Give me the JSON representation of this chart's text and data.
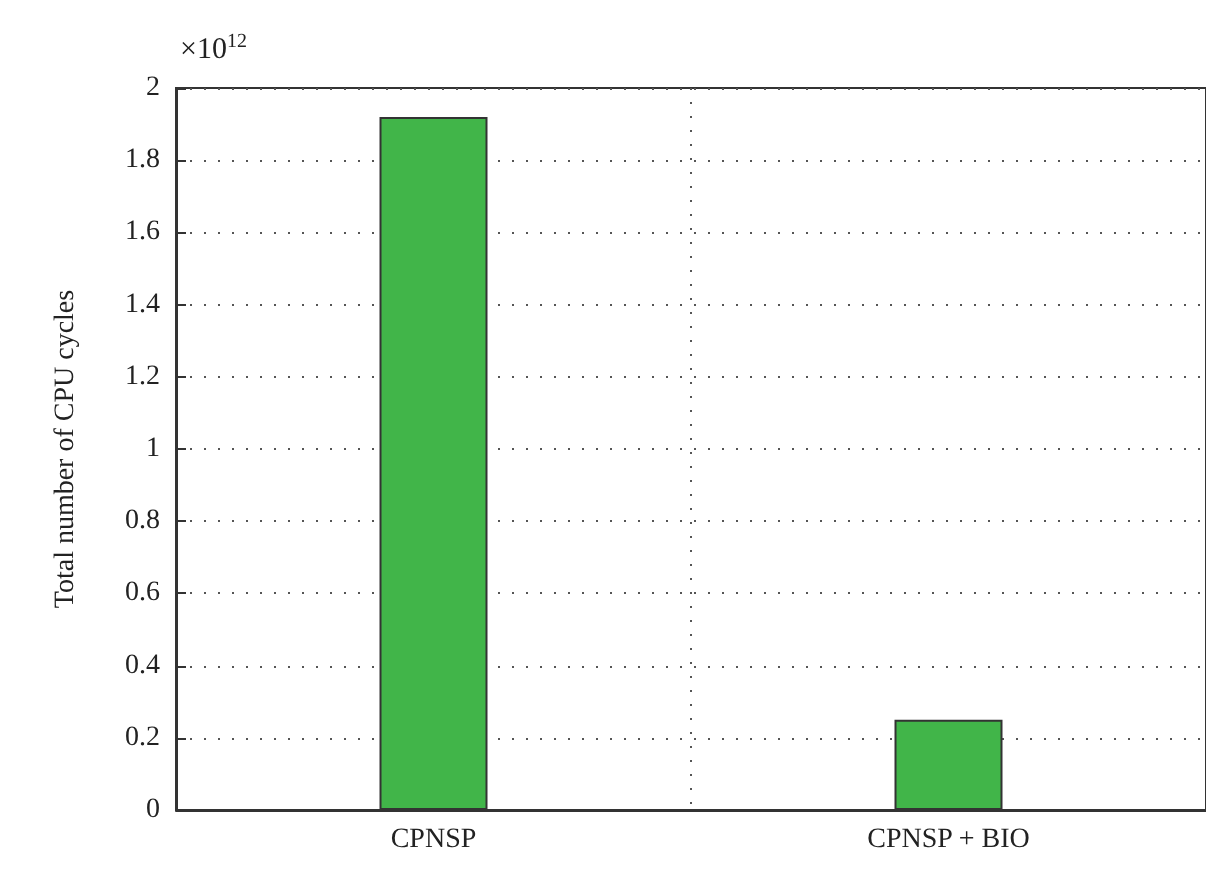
{
  "chart_data": {
    "type": "bar",
    "ylabel": "Total number of CPU cycles",
    "categories": [
      "CPNSP",
      "CPNSP + BIO"
    ],
    "values": [
      1.92,
      0.25
    ],
    "color": "#41b549",
    "ylim": [
      0,
      2
    ],
    "yticks": [
      0,
      0.2,
      0.4,
      0.6,
      0.8,
      1,
      1.2,
      1.4,
      1.6,
      1.8,
      2
    ],
    "grid": true,
    "annotations": [
      "×10$^{12}$"
    ]
  }
}
